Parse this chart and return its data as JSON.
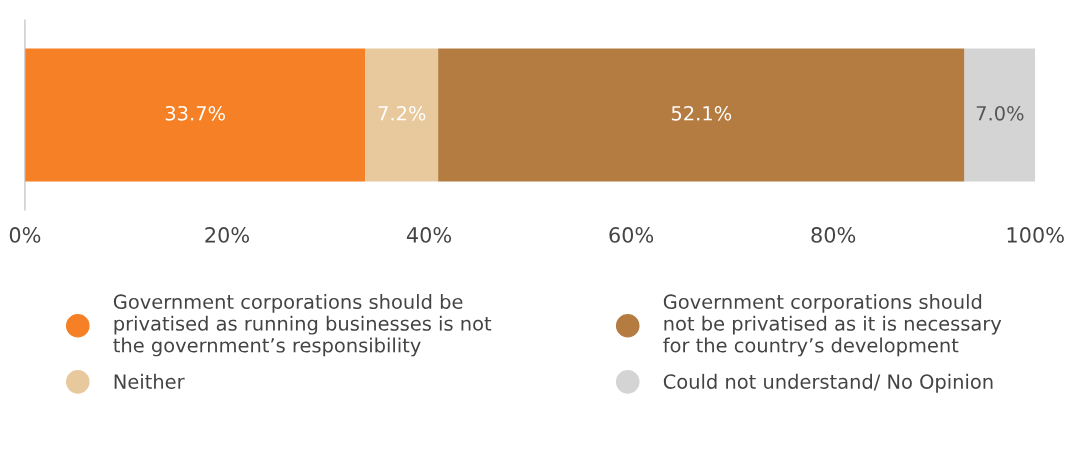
{
  "chart_data": {
    "type": "bar",
    "orientation": "horizontal",
    "stacked": true,
    "categories": [
      null
    ],
    "series": [
      {
        "name": "Government corporations should be\nprivatised as running businesses is not\nthe government’s responsibility",
        "color": "#f58025",
        "values": [
          33.7
        ],
        "value_labels": [
          "33.7%"
        ]
      },
      {
        "name": "Neither",
        "color": "#e8c99e",
        "values": [
          7.2
        ],
        "value_labels": [
          "7.2%"
        ]
      },
      {
        "name": "Government corporations should\nnot be privatised as it is necessary\nfor the country’s development",
        "color": "#b57c42",
        "values": [
          52.1
        ],
        "value_labels": [
          "52.1%"
        ]
      },
      {
        "name": "Could not understand/ No Opinion",
        "color": "#d4d4d4",
        "values": [
          7.0
        ],
        "value_labels": [
          "7.0%"
        ]
      }
    ],
    "xlim": [
      0,
      100
    ],
    "xticks": [
      {
        "value": 0,
        "label": "0%"
      },
      {
        "value": 20,
        "label": "20%"
      },
      {
        "value": 40,
        "label": "40%"
      },
      {
        "value": 60,
        "label": "60%"
      },
      {
        "value": 80,
        "label": "80%"
      },
      {
        "value": 100,
        "label": "100%"
      }
    ],
    "grid": false,
    "legend": "bottom",
    "marker": "circle"
  }
}
